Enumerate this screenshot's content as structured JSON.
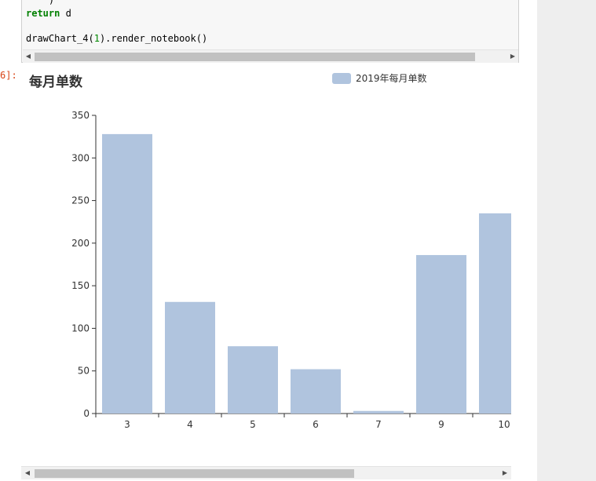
{
  "code": {
    "line0": "    )",
    "return_kw": "return",
    "return_var": " d",
    "call_prefix": "drawChart_4(",
    "call_arg": "1",
    "call_suffix": ").render_notebook()"
  },
  "output_prompt": "6]:",
  "chart_data": {
    "type": "bar",
    "title": "每月单数",
    "legend": [
      "2019年每月单数"
    ],
    "legend_position": "top-right",
    "categories": [
      "3",
      "4",
      "5",
      "6",
      "7",
      "9",
      "10"
    ],
    "series": [
      {
        "name": "2019年每月单数",
        "values": [
          328,
          131,
          79,
          52,
          3,
          186,
          235
        ]
      }
    ],
    "yticks": [
      "0",
      "50",
      "100",
      "150",
      "200",
      "250",
      "300",
      "350"
    ],
    "ylim": [
      0,
      350
    ],
    "grid": false,
    "color": "#b0c4de"
  }
}
